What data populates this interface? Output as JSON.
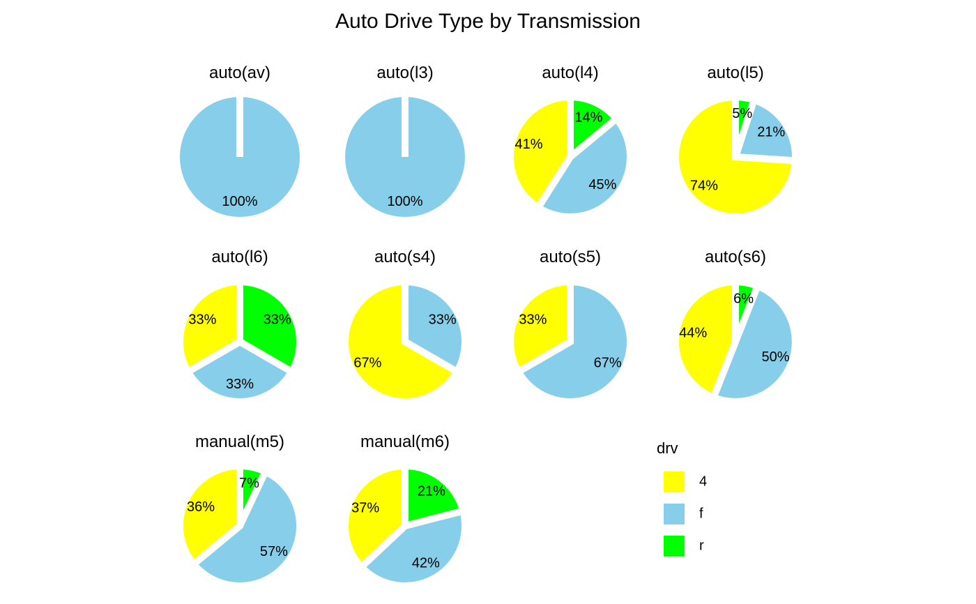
{
  "chart_data": {
    "type": "pie",
    "title": "Auto Drive Type by Transmission",
    "legend": {
      "title": "drv",
      "position": "right",
      "entries": [
        {
          "label": "4",
          "color": "#FFFF00"
        },
        {
          "label": "f",
          "color": "#87CEEB"
        },
        {
          "label": "r",
          "color": "#00FF00"
        }
      ]
    },
    "panels": [
      {
        "title": "auto(av)",
        "slices": [
          {
            "drv": "f",
            "value": 100,
            "label": "100%"
          }
        ]
      },
      {
        "title": "auto(l3)",
        "slices": [
          {
            "drv": "f",
            "value": 100,
            "label": "100%"
          }
        ]
      },
      {
        "title": "auto(l4)",
        "slices": [
          {
            "drv": "r",
            "value": 14,
            "label": "14%"
          },
          {
            "drv": "f",
            "value": 45,
            "label": "45%"
          },
          {
            "drv": "4",
            "value": 41,
            "label": "41%"
          }
        ]
      },
      {
        "title": "auto(l5)",
        "slices": [
          {
            "drv": "r",
            "value": 5,
            "label": "5%"
          },
          {
            "drv": "f",
            "value": 21,
            "label": "21%"
          },
          {
            "drv": "4",
            "value": 74,
            "label": "74%"
          }
        ]
      },
      {
        "title": "auto(l6)",
        "slices": [
          {
            "drv": "r",
            "value": 33.33,
            "label": "33%"
          },
          {
            "drv": "f",
            "value": 33.33,
            "label": "33%"
          },
          {
            "drv": "4",
            "value": 33.33,
            "label": "33%"
          }
        ]
      },
      {
        "title": "auto(s4)",
        "slices": [
          {
            "drv": "f",
            "value": 33.33,
            "label": "33%"
          },
          {
            "drv": "4",
            "value": 66.67,
            "label": "67%"
          }
        ]
      },
      {
        "title": "auto(s5)",
        "slices": [
          {
            "drv": "f",
            "value": 66.67,
            "label": "67%"
          },
          {
            "drv": "4",
            "value": 33.33,
            "label": "33%"
          }
        ]
      },
      {
        "title": "auto(s6)",
        "slices": [
          {
            "drv": "r",
            "value": 6,
            "label": "6%"
          },
          {
            "drv": "f",
            "value": 50,
            "label": "50%"
          },
          {
            "drv": "4",
            "value": 44,
            "label": "44%"
          }
        ]
      },
      {
        "title": "manual(m5)",
        "slices": [
          {
            "drv": "r",
            "value": 7,
            "label": "7%"
          },
          {
            "drv": "f",
            "value": 57,
            "label": "57%"
          },
          {
            "drv": "4",
            "value": 36,
            "label": "36%"
          }
        ]
      },
      {
        "title": "manual(m6)",
        "slices": [
          {
            "drv": "r",
            "value": 21,
            "label": "21%"
          },
          {
            "drv": "f",
            "value": 42,
            "label": "42%"
          },
          {
            "drv": "4",
            "value": 37,
            "label": "37%"
          }
        ]
      }
    ]
  }
}
